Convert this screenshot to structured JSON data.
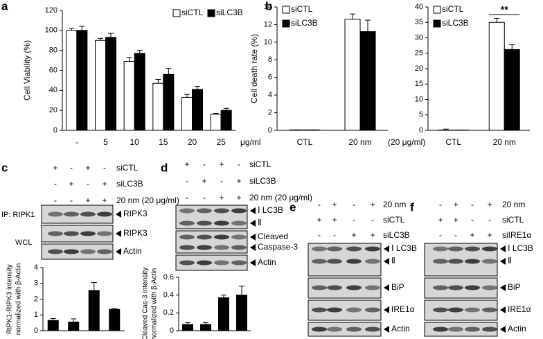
{
  "panel_letters": [
    "a",
    "b",
    "c",
    "d",
    "e",
    "f"
  ],
  "chart_data": [
    {
      "type": "bar",
      "y_label": [
        "Cell Viability (%)"
      ],
      "categories": [
        "-",
        "5",
        "10",
        "15",
        "20",
        "25"
      ],
      "x_unit": "μg/ml",
      "series": [
        {
          "name": "siCTL",
          "color": "#ffffff",
          "values": [
            100,
            90,
            69,
            47,
            33,
            16
          ],
          "errors": [
            2,
            2,
            4,
            4,
            3,
            1
          ]
        },
        {
          "name": "siLC3B",
          "color": "#000000",
          "values": [
            100,
            93,
            77,
            56,
            41,
            20
          ],
          "errors": [
            4,
            4,
            3,
            6,
            3,
            2
          ]
        }
      ],
      "ylim": [
        0,
        120
      ],
      "yticks": [
        0,
        20,
        40,
        60,
        80,
        100,
        120
      ],
      "legend": "top-right"
    },
    {
      "type": "bar",
      "y_label": [
        "Cell death rate (%)"
      ],
      "categories": [
        "CTL",
        "20 nm"
      ],
      "x_unit": "(20 μg/ml)",
      "series": [
        {
          "name": "siCTL",
          "color": "#ffffff",
          "values": [
            0.05,
            12.6
          ],
          "errors": [
            0,
            0.6
          ]
        },
        {
          "name": "siLC3B",
          "color": "#000000",
          "values": [
            0.05,
            11.2
          ],
          "errors": [
            0,
            1.3
          ]
        }
      ],
      "ylim": [
        0,
        14
      ],
      "yticks": [
        0,
        2,
        4,
        6,
        8,
        10,
        12,
        14
      ],
      "legend": "top-left"
    },
    {
      "type": "bar",
      "categories": [
        "CTL",
        "20 nm"
      ],
      "annotation": "**",
      "series": [
        {
          "name": "siCTL",
          "color": "#ffffff",
          "values": [
            0.1,
            35
          ],
          "errors": [
            0.3,
            1.3
          ]
        },
        {
          "name": "siLC3B",
          "color": "#000000",
          "values": [
            0.1,
            26.2
          ],
          "errors": [
            0,
            1.6
          ]
        }
      ],
      "ylim": [
        0,
        40
      ],
      "yticks": [
        0,
        5,
        10,
        15,
        20,
        25,
        30,
        35,
        40
      ],
      "legend": "top-left"
    },
    {
      "type": "bar",
      "y_label": [
        "RIPK1-RIPK3 intensity",
        "normalized with β-Actin"
      ],
      "categories": [
        null,
        null,
        null,
        null
      ],
      "values": [
        0.65,
        0.55,
        2.55,
        1.35
      ],
      "errors": [
        0.12,
        0.2,
        0.5,
        0.05
      ],
      "color": "#000000",
      "ylim": [
        0,
        4
      ],
      "yticks": [
        0,
        1,
        2,
        3,
        4
      ]
    },
    {
      "type": "bar",
      "y_label": [
        "Cleaved Cas-3 intensity",
        "normalized with β-Actin"
      ],
      "categories": [
        null,
        null,
        null,
        null
      ],
      "values": [
        0.07,
        0.07,
        0.37,
        0.4
      ],
      "errors": [
        0.02,
        0.02,
        0.03,
        0.1
      ],
      "color": "#000000",
      "ylim": [
        0,
        0.6
      ],
      "yticks": [
        0,
        0.2,
        0.4,
        0.6
      ]
    }
  ],
  "blots": [
    {
      "conditions": [
        {
          "label": "siCTL",
          "signs": [
            "+",
            "-",
            "+",
            "-"
          ]
        },
        {
          "label": "siLC3B",
          "signs": [
            "-",
            "+",
            "-",
            "+"
          ]
        },
        {
          "label": "20 nm (20 μg/ml)",
          "signs": [
            "-",
            "-",
            "+",
            "+"
          ]
        }
      ],
      "boxes": [
        {
          "bands": [
            "RIPK3"
          ],
          "side": "IP: RIPK1"
        },
        {
          "bands": [
            "RIPK3"
          ],
          "side": "WCL"
        },
        {
          "bands": [
            "Actin"
          ]
        }
      ]
    },
    {
      "conditions": [
        {
          "label": "siCTL",
          "signs": [
            "+",
            "-",
            "+",
            "-"
          ]
        },
        {
          "label": "siLC3B",
          "signs": [
            "-",
            "+",
            "-",
            "+"
          ]
        },
        {
          "label": "20 nm (20 μg/ml)",
          "signs": [
            "-",
            "-",
            "+",
            "+"
          ]
        }
      ],
      "boxes": [
        {
          "bands": [
            "Ⅰ LC3B",
            "Ⅱ"
          ]
        },
        {
          "bands": [
            "Cleaved",
            "Caspase-3"
          ]
        },
        {
          "bands": [
            "Actin"
          ]
        }
      ]
    },
    {
      "conditions": [
        {
          "label": "20 nm",
          "signs": [
            "-",
            "+",
            "-",
            "+"
          ]
        },
        {
          "label": "siCTL",
          "signs": [
            "+",
            "+",
            "-",
            "-"
          ]
        },
        {
          "label": "siLC3B",
          "signs": [
            "-",
            "-",
            "+",
            "+"
          ]
        }
      ],
      "boxes": [
        {
          "bands": [
            "Ⅰ LC3B",
            "Ⅱ"
          ]
        },
        {
          "bands": [
            "BiP"
          ]
        },
        {
          "bands": [
            "IRE1α"
          ]
        },
        {
          "bands": [
            "Actin"
          ]
        }
      ]
    },
    {
      "conditions": [
        {
          "label": "20 nm",
          "signs": [
            "-",
            "+",
            "-",
            "+"
          ]
        },
        {
          "label": "siCTL",
          "signs": [
            "+",
            "+",
            "-",
            "-"
          ]
        },
        {
          "label": "siIRE1α",
          "signs": [
            "-",
            "-",
            "+",
            "+"
          ]
        }
      ],
      "boxes": [
        {
          "bands": [
            "Ⅰ LC3B",
            "Ⅱ"
          ]
        },
        {
          "bands": [
            "BiP"
          ]
        },
        {
          "bands": [
            "IRE1α"
          ]
        },
        {
          "bands": [
            "Actin"
          ]
        }
      ]
    }
  ]
}
